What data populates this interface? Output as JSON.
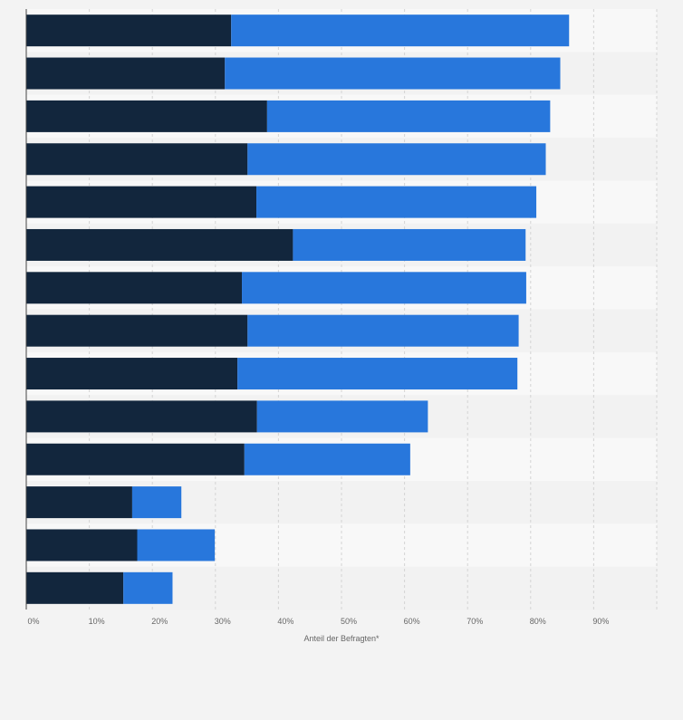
{
  "chart_data": {
    "type": "bar",
    "orientation": "horizontal",
    "stacked": true,
    "title": "",
    "xlabel": "Anteil der Befragten*",
    "ylabel": "",
    "xlim": [
      0,
      100
    ],
    "x_ticks": [
      0,
      10,
      20,
      30,
      40,
      50,
      60,
      70,
      80,
      90
    ],
    "x_tick_labels": [
      "0%",
      "10%",
      "20%",
      "30%",
      "40%",
      "50%",
      "60%",
      "70%",
      "80%",
      "90%"
    ],
    "grid": true,
    "categories": [
      "",
      "",
      "",
      "",
      "",
      "",
      "",
      "",
      "",
      "",
      "",
      "",
      "",
      ""
    ],
    "series": [
      {
        "color": "#12263d",
        "values": [
          32.5,
          31.5,
          38.2,
          35.1,
          36.5,
          42.3,
          34.2,
          35.1,
          33.5,
          36.6,
          34.6,
          16.8,
          17.6,
          15.4
        ]
      },
      {
        "color": "#2877dc",
        "values": [
          53.6,
          53.2,
          44.9,
          47.3,
          44.4,
          36.9,
          45.1,
          43.0,
          44.4,
          27.1,
          26.3,
          7.8,
          12.3,
          7.8
        ]
      }
    ]
  }
}
